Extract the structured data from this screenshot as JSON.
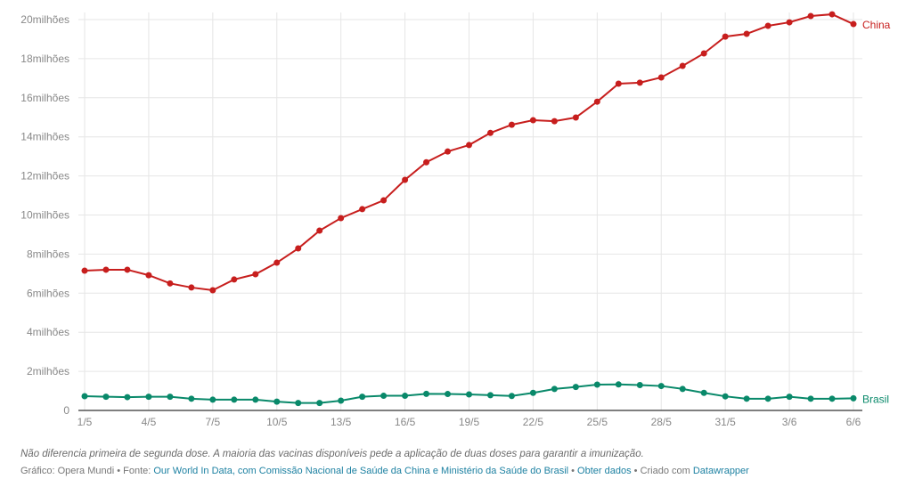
{
  "chart_data": {
    "type": "line",
    "x": [
      "1/5",
      "2/5",
      "3/5",
      "4/5",
      "5/5",
      "6/5",
      "7/5",
      "8/5",
      "9/5",
      "10/5",
      "11/5",
      "12/5",
      "13/5",
      "14/5",
      "15/5",
      "16/5",
      "17/5",
      "18/5",
      "19/5",
      "20/5",
      "21/5",
      "22/5",
      "23/5",
      "24/5",
      "25/5",
      "26/5",
      "27/5",
      "28/5",
      "29/5",
      "30/5",
      "31/5",
      "1/6",
      "2/6",
      "3/6",
      "4/6",
      "5/6",
      "6/6"
    ],
    "xticks": [
      "1/5",
      "4/5",
      "7/5",
      "10/5",
      "13/5",
      "16/5",
      "19/5",
      "22/5",
      "25/5",
      "28/5",
      "31/5",
      "3/6",
      "6/6"
    ],
    "yticks": [
      {
        "v": 0,
        "label": "0"
      },
      {
        "v": 2,
        "label": "2milhões"
      },
      {
        "v": 4,
        "label": "4milhões"
      },
      {
        "v": 6,
        "label": "6milhões"
      },
      {
        "v": 8,
        "label": "8milhões"
      },
      {
        "v": 10,
        "label": "10milhões"
      },
      {
        "v": 12,
        "label": "12milhões"
      },
      {
        "v": 14,
        "label": "14milhões"
      },
      {
        "v": 16,
        "label": "16milhões"
      },
      {
        "v": 18,
        "label": "18milhões"
      },
      {
        "v": 20,
        "label": "20milhões"
      }
    ],
    "ylim": [
      0,
      20
    ],
    "y_unit": "milhões",
    "grid": true,
    "series": [
      {
        "name": "China",
        "color": "#c71e1d",
        "values": [
          7.15,
          7.2,
          7.2,
          6.92,
          6.5,
          6.29,
          6.15,
          6.7,
          6.97,
          7.56,
          8.29,
          9.2,
          9.84,
          10.3,
          10.75,
          11.8,
          12.7,
          13.25,
          13.58,
          14.2,
          14.62,
          14.85,
          14.8,
          14.99,
          15.8,
          16.72,
          16.77,
          17.04,
          17.63,
          18.27,
          19.13,
          19.27,
          19.68,
          19.86,
          20.18,
          20.27,
          19.77
        ]
      },
      {
        "name": "Brasil",
        "color": "#09896a",
        "values": [
          0.73,
          0.7,
          0.68,
          0.7,
          0.7,
          0.6,
          0.55,
          0.55,
          0.55,
          0.45,
          0.38,
          0.38,
          0.5,
          0.7,
          0.75,
          0.75,
          0.85,
          0.84,
          0.82,
          0.78,
          0.74,
          0.9,
          1.1,
          1.2,
          1.32,
          1.33,
          1.3,
          1.25,
          1.1,
          0.9,
          0.72,
          0.6,
          0.6,
          0.7,
          0.6,
          0.6,
          0.62
        ]
      }
    ]
  },
  "notes": "Não diferencia primeira de segunda dose. A maioria das vacinas disponíveis pede a aplicação de duas doses para garantir a imunização.",
  "footer": {
    "chart_by": "Gráfico: Opera Mundi",
    "sep": " • ",
    "source_label": "Fonte: ",
    "source_link": "Our World In Data, com Comissão Nacional de Saúde da China e Ministério da Saúde do Brasil",
    "get_data": "Obter dados",
    "created_label": "Criado com ",
    "created_link": "Datawrapper"
  }
}
